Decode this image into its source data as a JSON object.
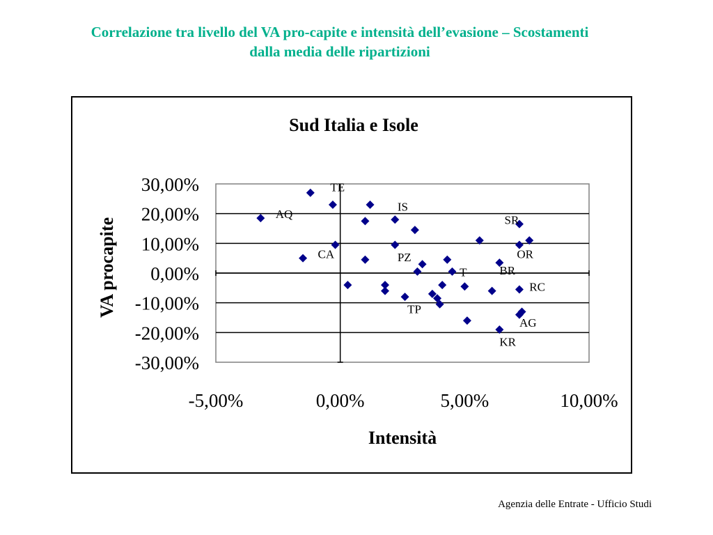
{
  "page": {
    "title_line1": "Correlazione tra livello del VA pro-capite e intensità dell’evasione – Scostamenti",
    "title_line2": "dalla media delle ripartizioni",
    "footer": "Agenzia delle Entrate - Ufficio Studi",
    "title_color": "#00b08c"
  },
  "chart_data": {
    "type": "scatter",
    "title": "Sud Italia e Isole",
    "xlabel": "Intensità",
    "ylabel": "VA procapite",
    "xlim": [
      -5,
      10
    ],
    "ylim": [
      -30,
      30
    ],
    "x_ticks": [
      "-5,00%",
      "0,00%",
      "5,00%",
      "10,00%"
    ],
    "y_ticks": [
      "30,00%",
      "20,00%",
      "10,00%",
      "0,00%",
      "-10,00%",
      "-20,00%",
      "-30,00%"
    ],
    "grid": "horizontal",
    "marker_color": "#00008b",
    "points": [
      {
        "x": -3.2,
        "y": 18.5
      },
      {
        "x": -1.2,
        "y": 27.0
      },
      {
        "x": -1.5,
        "y": 5.0
      },
      {
        "x": -0.3,
        "y": 23.0
      },
      {
        "x": -0.2,
        "y": 9.5
      },
      {
        "x": 0.3,
        "y": -4.0
      },
      {
        "x": 1.0,
        "y": 4.5
      },
      {
        "x": 1.0,
        "y": 17.5
      },
      {
        "x": 1.2,
        "y": 23.0
      },
      {
        "x": 1.8,
        "y": -4.0
      },
      {
        "x": 1.8,
        "y": -6.0
      },
      {
        "x": 2.2,
        "y": 18.0
      },
      {
        "x": 2.2,
        "y": 9.5
      },
      {
        "x": 2.6,
        "y": -8.0
      },
      {
        "x": 3.0,
        "y": 14.5
      },
      {
        "x": 3.1,
        "y": 0.5
      },
      {
        "x": 3.3,
        "y": 3.0
      },
      {
        "x": 3.7,
        "y": -7.0
      },
      {
        "x": 3.9,
        "y": -8.5
      },
      {
        "x": 4.0,
        "y": -10.5
      },
      {
        "x": 4.1,
        "y": -4.0
      },
      {
        "x": 4.3,
        "y": 4.5
      },
      {
        "x": 4.5,
        "y": 0.5
      },
      {
        "x": 5.0,
        "y": -4.5
      },
      {
        "x": 5.1,
        "y": -16.0
      },
      {
        "x": 5.6,
        "y": 11.0
      },
      {
        "x": 6.1,
        "y": -6.0
      },
      {
        "x": 6.4,
        "y": 3.5
      },
      {
        "x": 6.4,
        "y": -19.0
      },
      {
        "x": 7.2,
        "y": 16.5
      },
      {
        "x": 7.2,
        "y": 9.5
      },
      {
        "x": 7.2,
        "y": -5.5
      },
      {
        "x": 7.2,
        "y": -14.0
      },
      {
        "x": 7.3,
        "y": -13.0
      },
      {
        "x": 7.6,
        "y": 11.0
      }
    ],
    "annotations": [
      {
        "label": "AQ",
        "x": -2.6,
        "y": 18.5
      },
      {
        "label": "TE",
        "x": -0.4,
        "y": 27.5
      },
      {
        "label": "CA",
        "x": -0.9,
        "y": 5.0
      },
      {
        "label": "IS",
        "x": 2.3,
        "y": 21.0
      },
      {
        "label": "PZ",
        "x": 2.3,
        "y": 4.0
      },
      {
        "label": "SR",
        "x": 6.6,
        "y": 16.5
      },
      {
        "label": "OR",
        "x": 7.1,
        "y": 5.0
      },
      {
        "label": "BR",
        "x": 6.4,
        "y": -0.5
      },
      {
        "label": "RC",
        "x": 7.6,
        "y": -6.0
      },
      {
        "label": "TP",
        "x": 2.7,
        "y": -13.5
      },
      {
        "label": "AG",
        "x": 7.2,
        "y": -18.0
      },
      {
        "label": "KR",
        "x": 6.4,
        "y": -24.5
      },
      {
        "label": "T",
        "x": 4.8,
        "y": -1.0
      }
    ]
  }
}
